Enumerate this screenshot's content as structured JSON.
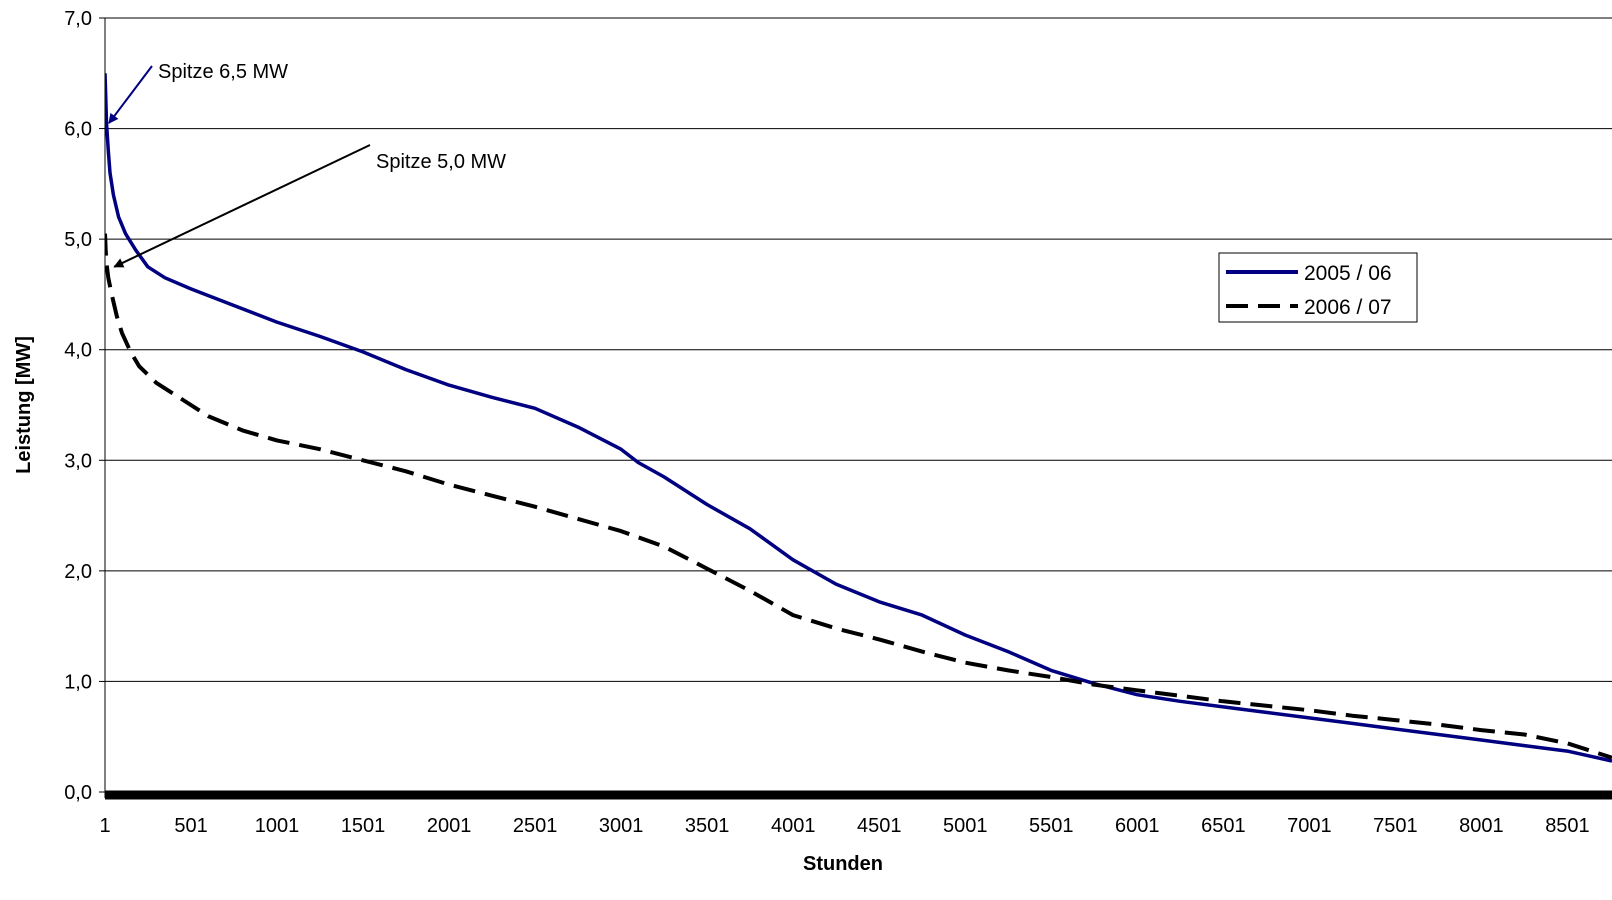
{
  "chart_data": {
    "type": "line",
    "title": "",
    "xlabel": "Stunden",
    "ylabel": "Leistung [MW]",
    "xlim": [
      1,
      8760
    ],
    "ylim": [
      0,
      7
    ],
    "grid": "horizontal",
    "legend_position": "right",
    "x_tick_labels": [
      "1",
      "501",
      "1001",
      "1501",
      "2001",
      "2501",
      "3001",
      "3501",
      "4001",
      "4501",
      "5001",
      "5501",
      "6001",
      "6501",
      "7001",
      "7501",
      "8001",
      "8501"
    ],
    "x_tick_values": [
      1,
      501,
      1001,
      1501,
      2001,
      2501,
      3001,
      3501,
      4001,
      4501,
      5001,
      5501,
      6001,
      6501,
      7001,
      7501,
      8001,
      8501
    ],
    "y_tick_labels": [
      "0,0",
      "1,0",
      "2,0",
      "3,0",
      "4,0",
      "5,0",
      "6,0",
      "7,0"
    ],
    "y_tick_values": [
      0,
      1,
      2,
      3,
      4,
      5,
      6,
      7
    ],
    "series": [
      {
        "name": "2005 / 06",
        "color": "#000080",
        "style": "solid",
        "x": [
          1,
          5,
          10,
          20,
          30,
          50,
          80,
          120,
          180,
          250,
          350,
          500,
          750,
          1000,
          1250,
          1500,
          1750,
          2000,
          2250,
          2500,
          2750,
          3000,
          3100,
          3250,
          3500,
          3750,
          4000,
          4250,
          4500,
          4750,
          5000,
          5250,
          5500,
          5750,
          6000,
          6250,
          6500,
          6750,
          7000,
          7250,
          7500,
          7750,
          8000,
          8250,
          8500,
          8760
        ],
        "y": [
          6.5,
          6.3,
          6.05,
          5.8,
          5.6,
          5.4,
          5.2,
          5.05,
          4.9,
          4.75,
          4.65,
          4.55,
          4.4,
          4.25,
          4.12,
          3.98,
          3.82,
          3.68,
          3.57,
          3.47,
          3.3,
          3.1,
          2.98,
          2.85,
          2.6,
          2.38,
          2.1,
          1.88,
          1.72,
          1.6,
          1.42,
          1.27,
          1.1,
          0.98,
          0.88,
          0.82,
          0.77,
          0.72,
          0.67,
          0.62,
          0.57,
          0.52,
          0.47,
          0.42,
          0.37,
          0.28
        ]
      },
      {
        "name": "2006 / 07",
        "color": "#000000",
        "style": "dashed",
        "x": [
          1,
          5,
          10,
          20,
          40,
          70,
          100,
          150,
          200,
          300,
          450,
          600,
          800,
          1000,
          1250,
          1500,
          1750,
          2000,
          2250,
          2500,
          2750,
          3000,
          3250,
          3500,
          3750,
          4000,
          4250,
          4500,
          4750,
          5000,
          5250,
          5500,
          5750,
          6000,
          6250,
          6500,
          6750,
          7000,
          7250,
          7500,
          7750,
          8000,
          8250,
          8500,
          8760
        ],
        "y": [
          5.05,
          4.9,
          4.78,
          4.65,
          4.5,
          4.3,
          4.15,
          3.98,
          3.85,
          3.7,
          3.55,
          3.4,
          3.27,
          3.18,
          3.1,
          3.0,
          2.9,
          2.78,
          2.68,
          2.58,
          2.47,
          2.36,
          2.22,
          2.02,
          1.82,
          1.6,
          1.48,
          1.38,
          1.27,
          1.17,
          1.1,
          1.04,
          0.97,
          0.92,
          0.87,
          0.82,
          0.78,
          0.74,
          0.69,
          0.65,
          0.61,
          0.56,
          0.52,
          0.44,
          0.31
        ]
      }
    ],
    "annotations": [
      {
        "text": "Spitze 6,5 MW",
        "target_x": 1,
        "target_y": 6.05
      },
      {
        "text": "Spitze 5,0 MW",
        "target_x": 20,
        "target_y": 4.75
      }
    ]
  }
}
